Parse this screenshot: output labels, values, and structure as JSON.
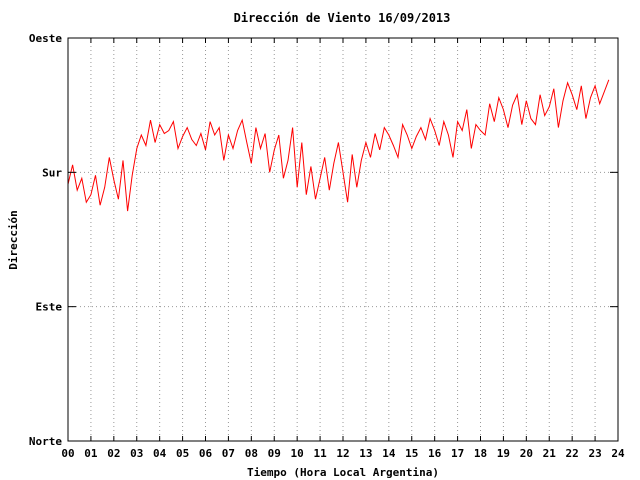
{
  "chart_data": {
    "type": "line",
    "title": "Dirección de Viento 16/09/2013",
    "xlabel": "Tiempo (Hora Local Argentina)",
    "ylabel": "Dirección",
    "xlim": [
      0,
      24
    ],
    "ylim": [
      0,
      270
    ],
    "x_ticks": [
      0,
      1,
      2,
      3,
      4,
      5,
      6,
      7,
      8,
      9,
      10,
      11,
      12,
      13,
      14,
      15,
      16,
      17,
      18,
      19,
      20,
      21,
      22,
      23,
      24
    ],
    "x_tick_labels": [
      "00",
      "01",
      "02",
      "03",
      "04",
      "05",
      "06",
      "07",
      "08",
      "09",
      "10",
      "11",
      "12",
      "13",
      "14",
      "15",
      "16",
      "17",
      "18",
      "19",
      "20",
      "21",
      "22",
      "23",
      "24"
    ],
    "y_ticks": [
      0,
      90,
      180,
      270
    ],
    "y_tick_labels": [
      "Norte",
      "Este",
      "Sur",
      "Oeste"
    ],
    "grid": true,
    "series_color": "#ff0000",
    "series": [
      {
        "values_description": "direction vs hour (approx, sampled)",
        "x": [
          0.0,
          0.2,
          0.4,
          0.6,
          0.8,
          1.0,
          1.2,
          1.4,
          1.6,
          1.8,
          2.0,
          2.2,
          2.4,
          2.6,
          2.8,
          3.0,
          3.2,
          3.4,
          3.6,
          3.8,
          4.0,
          4.2,
          4.4,
          4.6,
          4.8,
          5.0,
          5.2,
          5.4,
          5.6,
          5.8,
          6.0,
          6.2,
          6.4,
          6.6,
          6.8,
          7.0,
          7.2,
          7.4,
          7.6,
          7.8,
          8.0,
          8.2,
          8.4,
          8.6,
          8.8,
          9.0,
          9.2,
          9.4,
          9.6,
          9.8,
          10.0,
          10.2,
          10.4,
          10.6,
          10.8,
          11.0,
          11.2,
          11.4,
          11.6,
          11.8,
          12.0,
          12.2,
          12.4,
          12.6,
          12.8,
          13.0,
          13.2,
          13.4,
          13.6,
          13.8,
          14.0,
          14.2,
          14.4,
          14.6,
          14.8,
          15.0,
          15.2,
          15.4,
          15.6,
          15.8,
          16.0,
          16.2,
          16.4,
          16.6,
          16.8,
          17.0,
          17.2,
          17.4,
          17.6,
          17.8,
          18.0,
          18.2,
          18.4,
          18.6,
          18.8,
          19.0,
          19.2,
          19.4,
          19.6,
          19.8,
          20.0,
          20.2,
          20.4,
          20.6,
          20.8,
          21.0,
          21.2,
          21.4,
          21.6,
          21.8,
          22.0,
          22.2,
          22.4,
          22.6,
          22.8,
          23.0,
          23.2,
          23.4,
          23.6
        ],
        "y": [
          172,
          185,
          168,
          176,
          160,
          165,
          178,
          158,
          170,
          190,
          175,
          162,
          188,
          154,
          178,
          196,
          205,
          198,
          215,
          200,
          212,
          206,
          208,
          214,
          196,
          204,
          210,
          202,
          198,
          206,
          195,
          214,
          205,
          210,
          188,
          205,
          196,
          208,
          215,
          200,
          186,
          210,
          196,
          206,
          180,
          195,
          205,
          176,
          188,
          210,
          170,
          200,
          165,
          184,
          162,
          176,
          190,
          168,
          186,
          200,
          180,
          160,
          192,
          170,
          188,
          200,
          190,
          206,
          195,
          210,
          205,
          198,
          190,
          212,
          205,
          196,
          204,
          210,
          202,
          216,
          208,
          198,
          214,
          205,
          190,
          214,
          208,
          222,
          196,
          212,
          208,
          205,
          226,
          214,
          230,
          222,
          210,
          225,
          232,
          212,
          228,
          216,
          212,
          232,
          218,
          224,
          236,
          210,
          228,
          240,
          232,
          222,
          238,
          216,
          230,
          238,
          226,
          234,
          242
        ]
      }
    ]
  }
}
